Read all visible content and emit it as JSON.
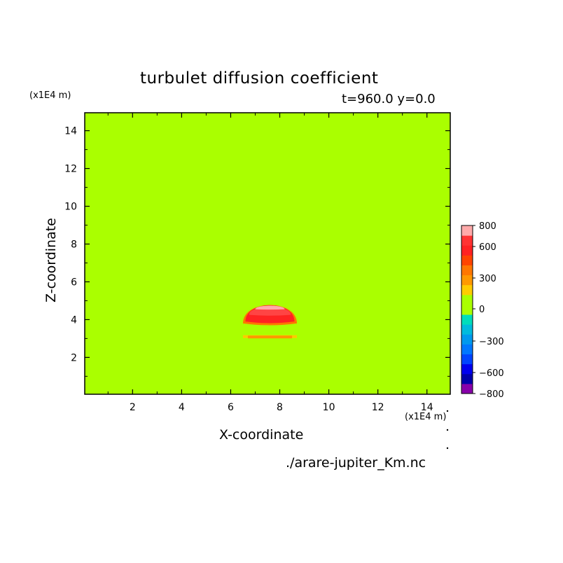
{
  "chart_data": {
    "type": "heatmap",
    "title": "turbulet diffusion coefficient",
    "subtitle": "t=960.0 y=0.0",
    "xlabel": "X-coordinate",
    "ylabel": "Z-coordinate",
    "x_unit": "(x1E4 m)",
    "y_unit": "(x1E4 m)",
    "xlim": [
      0.05,
      14.95
    ],
    "ylim": [
      0.05,
      14.95
    ],
    "x_ticks": [
      2,
      4,
      6,
      8,
      10,
      12,
      14
    ],
    "y_ticks": [
      2,
      4,
      6,
      8,
      10,
      12,
      14
    ],
    "background_level_color": "#aaff00",
    "colorbar": {
      "levels": [
        -800,
        -700,
        -600,
        -500,
        -400,
        -300,
        -200,
        -100,
        0,
        100,
        200,
        300,
        400,
        500,
        600,
        700,
        800
      ],
      "colors": [
        "#8800aa",
        "#0000aa",
        "#0000ee",
        "#0044ff",
        "#0077ff",
        "#0099ee",
        "#00bbdd",
        "#00ddbb",
        "#aaff00",
        "#aaff00",
        "#ffcc00",
        "#ff9900",
        "#ff7700",
        "#ff4400",
        "#ff2222",
        "#ff3333",
        "#ffaaaa"
      ],
      "tick_labels": [
        "800",
        "600",
        "300",
        "0",
        "−300",
        "−600",
        "−800"
      ]
    },
    "features": [
      {
        "name": "cap",
        "x_center": 7.6,
        "z_base": 3.8,
        "x_half_width": 1.1,
        "z_height": 1.3,
        "color": "#ff7700"
      },
      {
        "name": "cap",
        "x_center": 7.6,
        "z_base": 3.9,
        "x_half_width": 1.0,
        "z_height": 1.15,
        "color": "#ff2222"
      },
      {
        "name": "cap",
        "x_center": 7.6,
        "z_base": 4.25,
        "x_half_width": 0.85,
        "z_height": 0.55,
        "color": "#ff4444"
      },
      {
        "name": "cap",
        "x_center": 7.6,
        "z_base": 4.55,
        "x_half_width": 0.6,
        "z_height": 0.25,
        "color": "#ffaaaa"
      },
      {
        "name": "strip",
        "x_start": 6.5,
        "x_end": 8.7,
        "z": 3.1,
        "color": "#ffcc00"
      },
      {
        "name": "strip",
        "x_start": 6.7,
        "x_end": 8.5,
        "z": 3.08,
        "color": "#ff9900"
      }
    ]
  },
  "footer": {
    "filename": "./arare-jupiter_Km.nc"
  }
}
